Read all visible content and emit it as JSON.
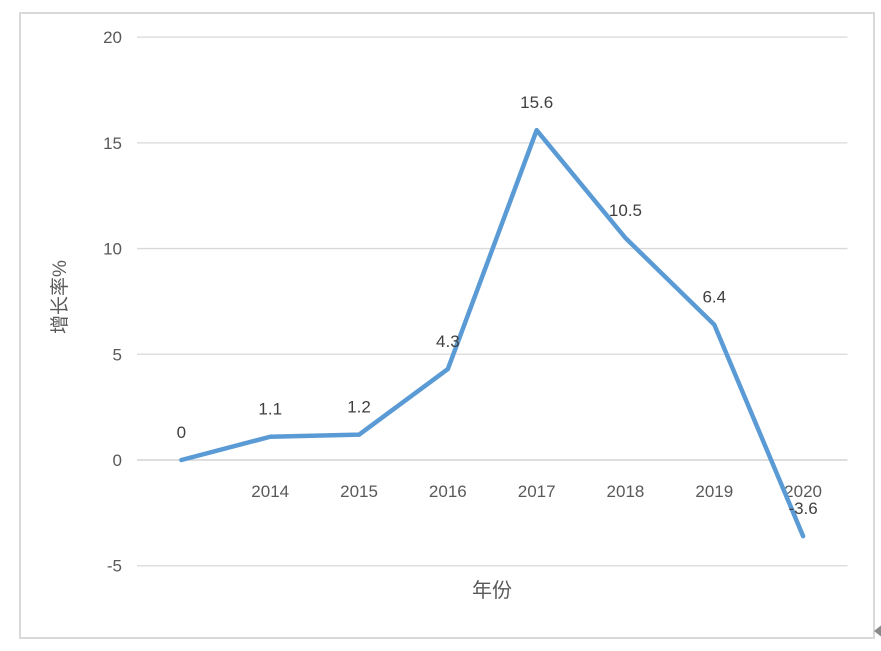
{
  "chart_data": {
    "type": "line",
    "title": "",
    "categories": [
      "",
      "2014",
      "2015",
      "2016",
      "2017",
      "2018",
      "2019",
      "2020"
    ],
    "values": [
      0,
      1.1,
      1.2,
      4.3,
      15.6,
      10.5,
      6.4,
      -3.6
    ],
    "data_labels": [
      "0",
      "1.1",
      "1.2",
      "4.3",
      "15.6",
      "10.5",
      "6.4",
      "-3.6"
    ],
    "xlabel": "年份",
    "ylabel": "增长率%",
    "y_ticks": [
      20,
      15,
      10,
      5,
      0,
      -5
    ],
    "ylim": [
      -5,
      20
    ],
    "grid": true,
    "legend": "none",
    "colors": {
      "line": "#5B9BD5",
      "gridline": "#D9D9D9",
      "zero_axis_line": "#CBCBCB",
      "chart_border": "#D9D9D9",
      "tick_label": "#595959",
      "axis_title": "#595959",
      "data_label": "#3F3F3F",
      "corner_arrow": "#8A8A8A"
    }
  },
  "decorations": {
    "corner_arrow_glyph": "left-scroll-arrow"
  }
}
